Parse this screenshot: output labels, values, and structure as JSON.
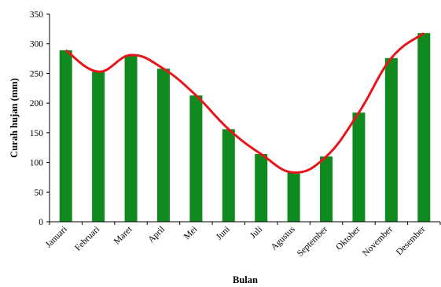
{
  "chart_data": {
    "type": "bar",
    "categories": [
      "Januari",
      "Februari",
      "Maret",
      "April",
      "Mei",
      "Juni",
      "Juli",
      "Agustus",
      "September",
      "Oktober",
      "November",
      "Desember"
    ],
    "series": [
      {
        "values": [
          289,
          253,
          281,
          258,
          213,
          156,
          114,
          83,
          110,
          184,
          276,
          318
        ],
        "color": "#0f8a1e"
      }
    ],
    "trend_line": {
      "color": "#e8151b",
      "smooth": true
    },
    "title": "",
    "xlabel": "Bulan",
    "ylabel": "Curah hujan (mm)",
    "ylim": [
      0,
      350
    ],
    "yticks": [
      0,
      50,
      100,
      150,
      200,
      250,
      300,
      350
    ],
    "grid": false,
    "legend": "none"
  }
}
